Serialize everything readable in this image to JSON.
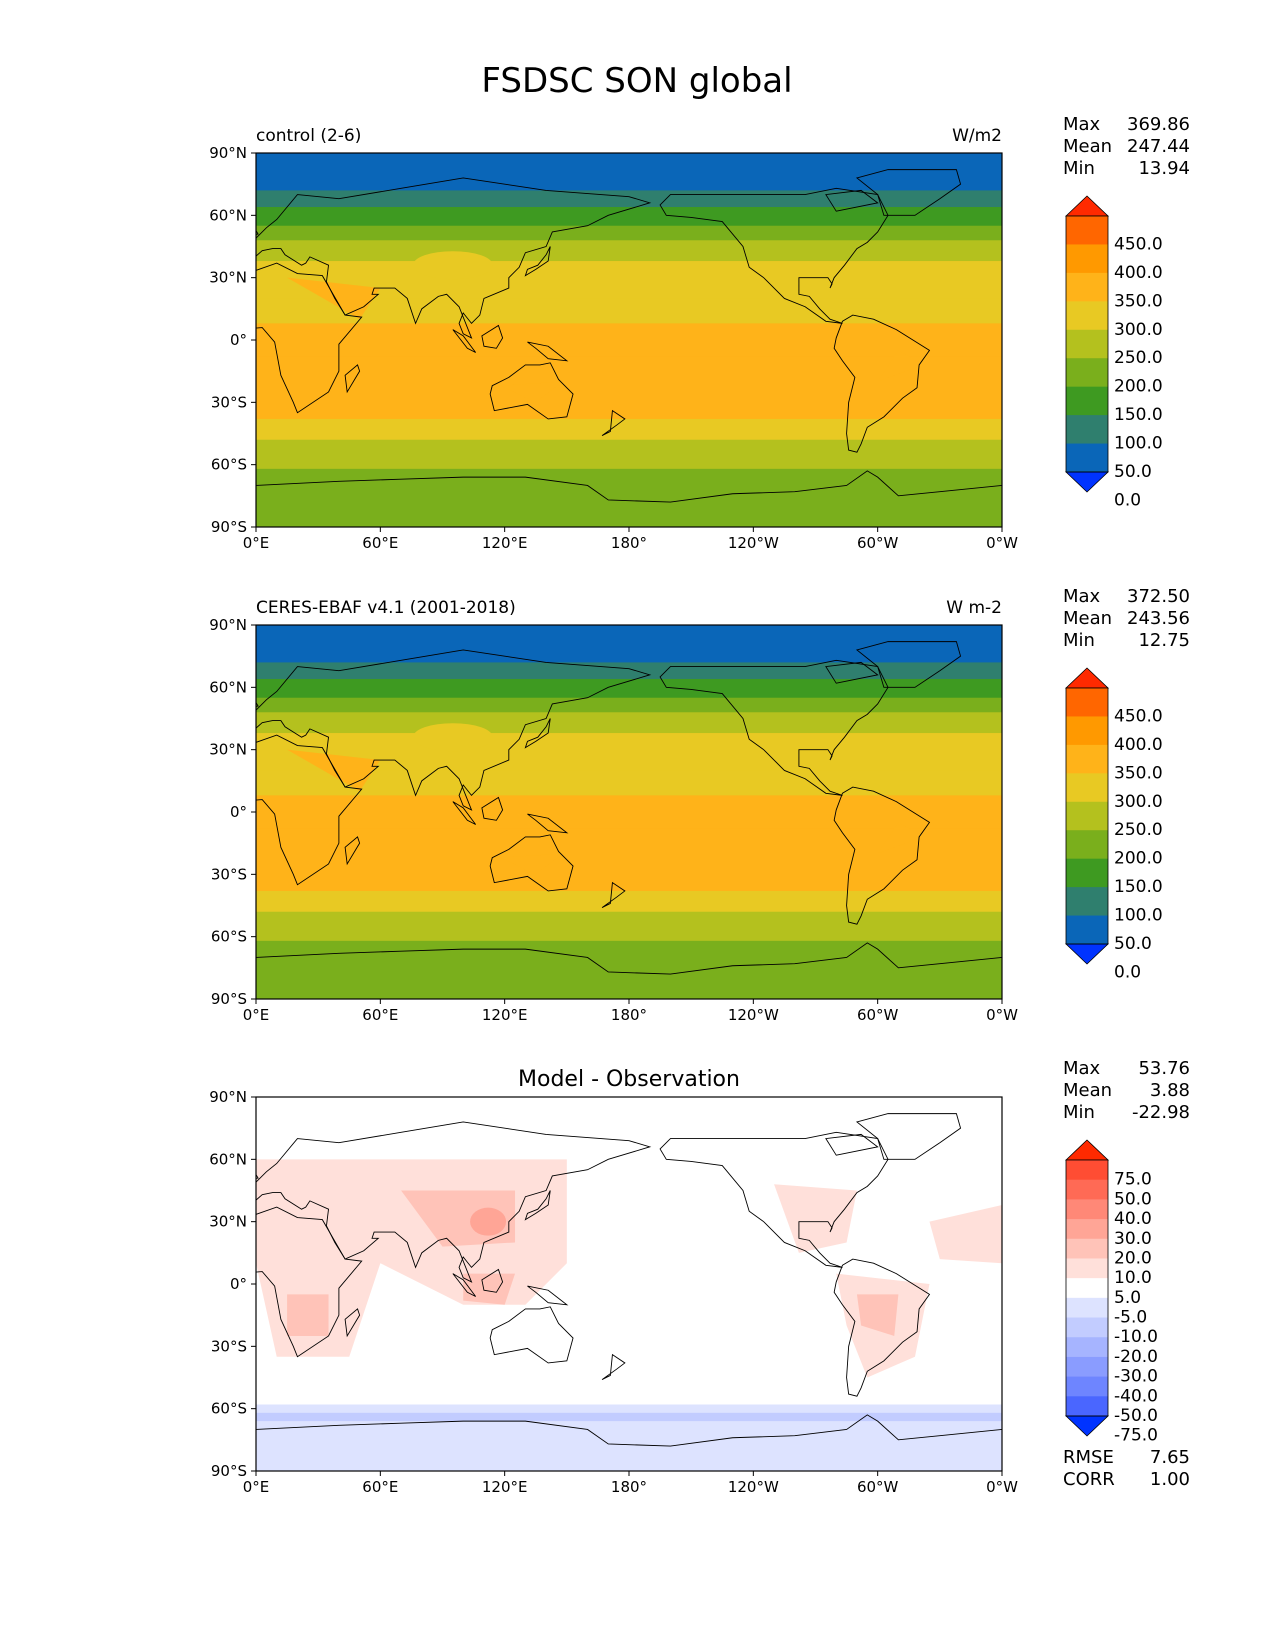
{
  "title": "FSDSC SON global",
  "x_ticks": [
    "0°E",
    "60°E",
    "120°E",
    "180°",
    "120°W",
    "60°W",
    "0°W"
  ],
  "y_ticks": [
    "90°N",
    "60°N",
    "30°N",
    "0°",
    "30°S",
    "60°S",
    "90°S"
  ],
  "panels": [
    {
      "left_title": "control (2-6)",
      "center_title": "",
      "units": "W/m2",
      "stats": [
        {
          "label": "Max",
          "value": "369.86"
        },
        {
          "label": "Mean",
          "value": "247.44"
        },
        {
          "label": "Min",
          "value": "13.94"
        }
      ],
      "colorbar": {
        "labels": [
          "450.0",
          "400.0",
          "350.0",
          "300.0",
          "250.0",
          "200.0",
          "150.0",
          "100.0",
          "50.0",
          "0.0"
        ],
        "colors": [
          "#ff2a00",
          "#ff6600",
          "#ff9900",
          "#ffb319",
          "#e8c923",
          "#b4c11e",
          "#7aaf1c",
          "#3e9a21",
          "#2f7f6e",
          "#0a66b8",
          "#0033ff"
        ]
      }
    },
    {
      "left_title": "CERES-EBAF v4.1 (2001-2018)",
      "center_title": "",
      "units": "W m-2",
      "stats": [
        {
          "label": "Max",
          "value": "372.50"
        },
        {
          "label": "Mean",
          "value": "243.56"
        },
        {
          "label": "Min",
          "value": "12.75"
        }
      ],
      "colorbar": {
        "labels": [
          "450.0",
          "400.0",
          "350.0",
          "300.0",
          "250.0",
          "200.0",
          "150.0",
          "100.0",
          "50.0",
          "0.0"
        ],
        "colors": [
          "#ff2a00",
          "#ff6600",
          "#ff9900",
          "#ffb319",
          "#e8c923",
          "#b4c11e",
          "#7aaf1c",
          "#3e9a21",
          "#2f7f6e",
          "#0a66b8",
          "#0033ff"
        ]
      }
    },
    {
      "left_title": "",
      "center_title": "Model - Observation",
      "units": "",
      "stats": [
        {
          "label": "Max",
          "value": "53.76"
        },
        {
          "label": "Mean",
          "value": "3.88"
        },
        {
          "label": "Min",
          "value": "-22.98"
        }
      ],
      "colorbar": {
        "labels": [
          "75.0",
          "50.0",
          "40.0",
          "30.0",
          "20.0",
          "10.0",
          "5.0",
          "-5.0",
          "-10.0",
          "-20.0",
          "-30.0",
          "-40.0",
          "-50.0",
          "-75.0"
        ],
        "colors": [
          "#ff2a00",
          "#ff4d33",
          "#ff6a55",
          "#ff8877",
          "#ffa596",
          "#ffc3b8",
          "#ffe0da",
          "#ffffff",
          "#dde3ff",
          "#c2ccff",
          "#a6b4ff",
          "#8a9cff",
          "#6e85ff",
          "#4a66ff",
          "#0033ff"
        ]
      },
      "bottom_stats": [
        {
          "label": "RMSE",
          "value": "7.65"
        },
        {
          "label": "CORR",
          "value": "1.00"
        }
      ]
    }
  ],
  "field_colors": {
    "abs": [
      "#0a66b8",
      "#2f7f6e",
      "#3e9a21",
      "#7aaf1c",
      "#b4c11e",
      "#e8c923",
      "#ffb319",
      "#ff9900"
    ],
    "diff": {
      "pos_light": "#ffe0da",
      "pos_mid": "#ffc3b8",
      "pos_strong": "#ffa596",
      "neg_light": "#dde3ff",
      "neg_mid": "#c2ccff",
      "white": "#ffffff"
    }
  }
}
